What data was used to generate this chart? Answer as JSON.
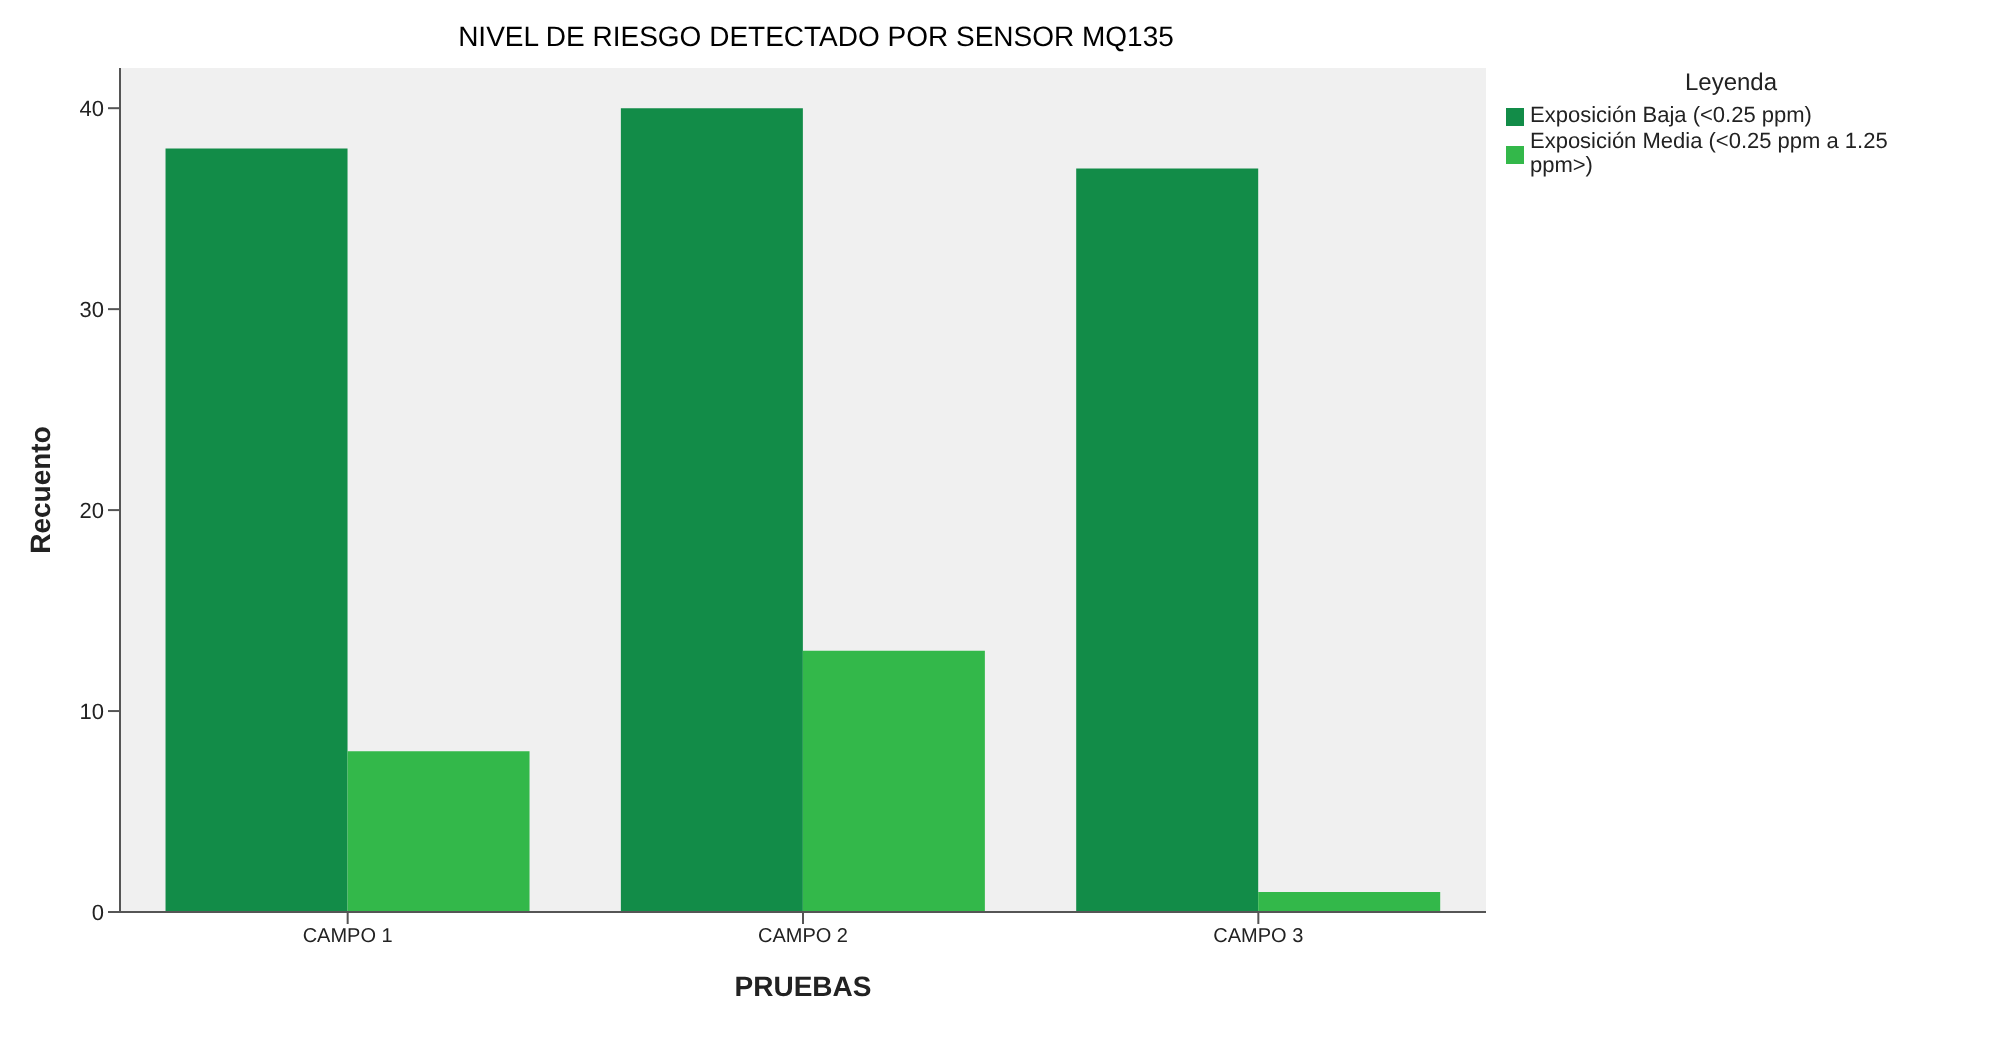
{
  "chart_data": {
    "type": "bar",
    "title": "NIVEL DE RIESGO DETECTADO POR SENSOR MQ135",
    "xlabel": "PRUEBAS",
    "ylabel": "Recuento",
    "legend_title": "Leyenda",
    "categories": [
      "CAMPO 1",
      "CAMPO 2",
      "CAMPO 3"
    ],
    "series": [
      {
        "name": "Exposición Baja (<0.25 ppm)",
        "color": "#128c48",
        "values": [
          38,
          40,
          37
        ]
      },
      {
        "name": "Exposición Media (<0.25 ppm a 1.25 ppm>)",
        "color": "#33b84a",
        "values": [
          8,
          13,
          1
        ]
      }
    ],
    "ylim": [
      0,
      42
    ],
    "yticks": [
      0,
      10,
      20,
      30,
      40
    ],
    "grid": false,
    "legend": "top right"
  }
}
